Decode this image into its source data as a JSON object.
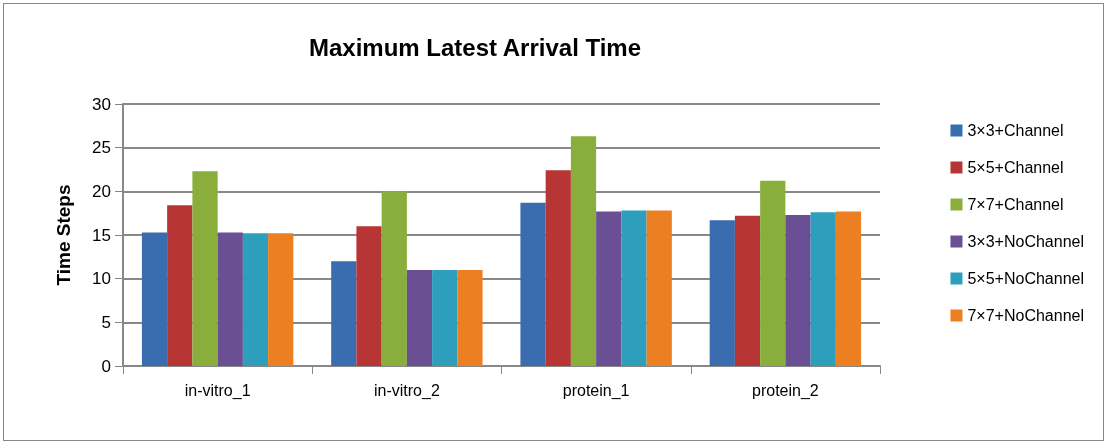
{
  "chart_data": {
    "type": "bar",
    "title": "Maximum Latest Arrival Time",
    "ylabel": "Time Steps",
    "categories": [
      "in-vitro_1",
      "in-vitro_2",
      "protein_1",
      "protein_2"
    ],
    "series": [
      {
        "name": "3×3+Channel",
        "color": "#3a6db0",
        "values": [
          15.3,
          12.0,
          18.7,
          16.7
        ]
      },
      {
        "name": "5×5+Channel",
        "color": "#b83535",
        "values": [
          18.4,
          16.0,
          22.4,
          17.2
        ]
      },
      {
        "name": "7×7+Channel",
        "color": "#8aae3c",
        "values": [
          22.3,
          20.0,
          26.3,
          21.2
        ]
      },
      {
        "name": "3×3+NoChannel",
        "color": "#6a4f94",
        "values": [
          15.3,
          11.0,
          17.7,
          17.3
        ]
      },
      {
        "name": "5×5+NoChannel",
        "color": "#2d9fbd",
        "values": [
          15.2,
          11.0,
          17.8,
          17.6
        ]
      },
      {
        "name": "7×7+NoChannel",
        "color": "#ec7f22",
        "values": [
          15.2,
          11.0,
          17.8,
          17.7
        ]
      }
    ],
    "ylim": [
      0,
      30
    ],
    "yticks": [
      0,
      5,
      10,
      15,
      20,
      25,
      30
    ],
    "grid": "y",
    "legend": "right"
  }
}
